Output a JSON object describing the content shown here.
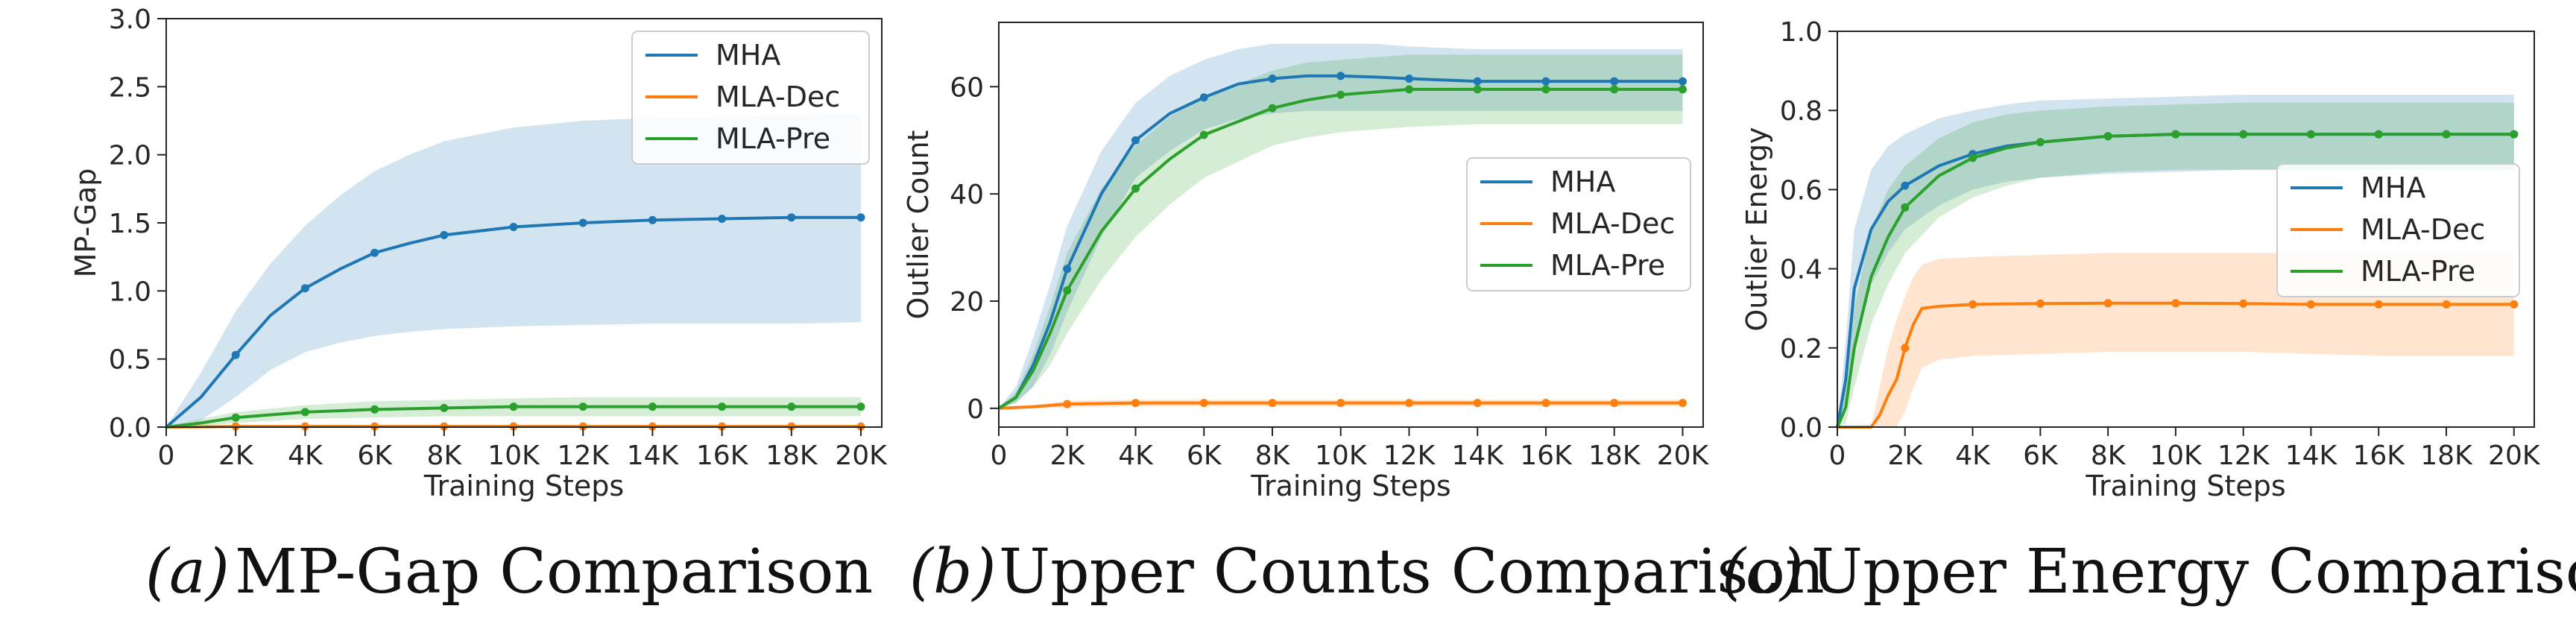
{
  "chart_data": [
    {
      "type": "line",
      "caption_label": "(a)",
      "caption_text": "MP-Gap Comparison",
      "xlabel": "Training Steps",
      "ylabel": "MP-Gap",
      "xlim": [
        0,
        20600
      ],
      "ylim": [
        0,
        3.0
      ],
      "xticks": [
        0,
        2000,
        4000,
        6000,
        8000,
        10000,
        12000,
        14000,
        16000,
        18000,
        20000
      ],
      "xticklabels": [
        "0",
        "2K",
        "4K",
        "6K",
        "8K",
        "10K",
        "12K",
        "14K",
        "16K",
        "18K",
        "20K"
      ],
      "yticks": [
        0,
        0.5,
        1.0,
        1.5,
        2.0,
        2.5,
        3.0
      ],
      "yticklabels": [
        "0.0",
        "0.5",
        "1.0",
        "1.5",
        "2.0",
        "2.5",
        "3.0"
      ],
      "grid": false,
      "legend_position": "top-right",
      "series": [
        {
          "name": "MHA",
          "color": "#1f77b4",
          "x": [
            0,
            1000,
            2000,
            3000,
            4000,
            5000,
            6000,
            7000,
            8000,
            10000,
            12000,
            14000,
            16000,
            18000,
            20000
          ],
          "y": [
            0,
            0.22,
            0.53,
            0.82,
            1.02,
            1.16,
            1.28,
            1.35,
            1.41,
            1.47,
            1.5,
            1.52,
            1.53,
            1.54,
            1.54
          ],
          "lower": [
            0,
            0.05,
            0.22,
            0.42,
            0.55,
            0.62,
            0.67,
            0.7,
            0.72,
            0.74,
            0.75,
            0.76,
            0.76,
            0.76,
            0.77
          ],
          "upper": [
            0,
            0.4,
            0.85,
            1.2,
            1.48,
            1.7,
            1.88,
            2.0,
            2.1,
            2.2,
            2.25,
            2.27,
            2.28,
            2.29,
            2.3
          ],
          "markers_x": [
            2000,
            4000,
            6000,
            8000,
            10000,
            12000,
            14000,
            16000,
            18000,
            20000
          ]
        },
        {
          "name": "MLA-Dec",
          "color": "#ff7f0e",
          "x": [
            0,
            2000,
            4000,
            6000,
            8000,
            10000,
            12000,
            14000,
            16000,
            18000,
            20000
          ],
          "y": [
            0,
            0.005,
            0.005,
            0.005,
            0.005,
            0.005,
            0.005,
            0.005,
            0.005,
            0.005,
            0.005
          ],
          "lower": [
            0,
            0,
            0,
            0,
            0,
            0,
            0,
            0,
            0,
            0,
            0
          ],
          "upper": [
            0,
            0.012,
            0.012,
            0.012,
            0.012,
            0.012,
            0.012,
            0.012,
            0.012,
            0.012,
            0.012
          ],
          "markers_x": [
            2000,
            4000,
            6000,
            8000,
            10000,
            12000,
            14000,
            16000,
            18000,
            20000
          ]
        },
        {
          "name": "MLA-Pre",
          "color": "#2ca02c",
          "x": [
            0,
            1000,
            2000,
            4000,
            6000,
            8000,
            10000,
            12000,
            14000,
            16000,
            18000,
            20000
          ],
          "y": [
            0,
            0.03,
            0.07,
            0.11,
            0.13,
            0.14,
            0.15,
            0.15,
            0.15,
            0.15,
            0.15,
            0.15
          ],
          "lower": [
            0,
            0.01,
            0.03,
            0.06,
            0.07,
            0.08,
            0.08,
            0.08,
            0.08,
            0.08,
            0.08,
            0.08
          ],
          "upper": [
            0,
            0.06,
            0.11,
            0.16,
            0.19,
            0.2,
            0.21,
            0.22,
            0.22,
            0.22,
            0.22,
            0.22
          ],
          "markers_x": [
            2000,
            4000,
            6000,
            8000,
            10000,
            12000,
            14000,
            16000,
            18000,
            20000
          ]
        }
      ]
    },
    {
      "type": "line",
      "caption_label": "(b)",
      "caption_text": "Upper Counts Comparison",
      "xlabel": "Training Steps",
      "ylabel": "Outlier Count",
      "xlim": [
        0,
        20600
      ],
      "ylim": [
        -3.5,
        72
      ],
      "xticks": [
        0,
        2000,
        4000,
        6000,
        8000,
        10000,
        12000,
        14000,
        16000,
        18000,
        20000
      ],
      "xticklabels": [
        "0",
        "2K",
        "4K",
        "6K",
        "8K",
        "10K",
        "12K",
        "14K",
        "16K",
        "18K",
        "20K"
      ],
      "yticks": [
        0,
        20,
        40,
        60
      ],
      "yticklabels": [
        "0",
        "20",
        "40",
        "60"
      ],
      "grid": false,
      "legend_position": "center-right",
      "series": [
        {
          "name": "MHA",
          "color": "#1f77b4",
          "x": [
            0,
            500,
            1000,
            1500,
            2000,
            3000,
            4000,
            5000,
            6000,
            7000,
            8000,
            9000,
            10000,
            11000,
            12000,
            14000,
            16000,
            18000,
            20000
          ],
          "y": [
            0,
            2,
            8,
            16,
            26,
            40,
            50,
            55,
            58,
            60.5,
            61.5,
            62,
            62,
            61.8,
            61.5,
            61,
            61,
            61,
            61
          ],
          "lower": [
            0,
            1,
            4,
            10,
            18,
            32,
            43,
            48,
            52,
            54,
            55,
            55.5,
            55.5,
            55.5,
            55.5,
            55.5,
            55.5,
            55.5,
            55.5
          ],
          "upper": [
            0,
            4,
            13,
            23,
            34,
            48,
            57,
            62,
            65,
            67,
            68,
            68,
            68,
            68,
            67.5,
            67,
            67,
            67,
            67
          ],
          "markers_x": [
            2000,
            4000,
            6000,
            8000,
            10000,
            12000,
            14000,
            16000,
            18000,
            20000
          ]
        },
        {
          "name": "MLA-Dec",
          "color": "#ff7f0e",
          "x": [
            0,
            1000,
            2000,
            4000,
            6000,
            8000,
            10000,
            12000,
            14000,
            16000,
            18000,
            20000
          ],
          "y": [
            0,
            0.3,
            0.8,
            1,
            1,
            1,
            1,
            1,
            1,
            1,
            1,
            1
          ],
          "lower": [
            0,
            0,
            0.2,
            0.4,
            0.4,
            0.4,
            0.4,
            0.4,
            0.4,
            0.4,
            0.4,
            0.4
          ],
          "upper": [
            0,
            0.6,
            1.4,
            1.6,
            1.6,
            1.6,
            1.6,
            1.6,
            1.6,
            1.6,
            1.6,
            1.6
          ],
          "markers_x": [
            2000,
            4000,
            6000,
            8000,
            10000,
            12000,
            14000,
            16000,
            18000,
            20000
          ]
        },
        {
          "name": "MLA-Pre",
          "color": "#2ca02c",
          "x": [
            0,
            500,
            1000,
            1500,
            2000,
            3000,
            4000,
            5000,
            6000,
            7000,
            8000,
            9000,
            10000,
            11000,
            12000,
            14000,
            16000,
            18000,
            20000
          ],
          "y": [
            0,
            2,
            7,
            14,
            22,
            33,
            41,
            46.5,
            51,
            53.5,
            56,
            57.5,
            58.5,
            59,
            59.5,
            59.5,
            59.5,
            59.5,
            59.5
          ],
          "lower": [
            0,
            1,
            4,
            8,
            14,
            24,
            32,
            38,
            43,
            46,
            49,
            50.5,
            51.5,
            52,
            52.5,
            53,
            53,
            53,
            53
          ],
          "upper": [
            0,
            3,
            10,
            19,
            29,
            41,
            49,
            54.5,
            58,
            60.5,
            63,
            64.5,
            65,
            65.5,
            66,
            66,
            66,
            66,
            66
          ],
          "markers_x": [
            2000,
            4000,
            6000,
            8000,
            10000,
            12000,
            14000,
            16000,
            18000,
            20000
          ]
        }
      ]
    },
    {
      "type": "line",
      "caption_label": "(c)",
      "caption_text": "Upper Energy Comparison",
      "xlabel": "Training Steps",
      "ylabel": "Outlier Energy",
      "xlim": [
        0,
        20600
      ],
      "ylim": [
        0,
        1.0
      ],
      "xticks": [
        0,
        2000,
        4000,
        6000,
        8000,
        10000,
        12000,
        14000,
        16000,
        18000,
        20000
      ],
      "xticklabels": [
        "0",
        "2K",
        "4K",
        "6K",
        "8K",
        "10K",
        "12K",
        "14K",
        "16K",
        "18K",
        "20K"
      ],
      "yticks": [
        0,
        0.2,
        0.4,
        0.6,
        0.8,
        1.0
      ],
      "yticklabels": [
        "0.0",
        "0.2",
        "0.4",
        "0.6",
        "0.8",
        "1.0"
      ],
      "grid": false,
      "legend_position": "center-right",
      "series": [
        {
          "name": "MHA",
          "color": "#1f77b4",
          "x": [
            0,
            250,
            500,
            1000,
            1500,
            2000,
            3000,
            4000,
            5000,
            6000,
            8000,
            10000,
            12000,
            14000,
            16000,
            18000,
            20000
          ],
          "y": [
            0,
            0.12,
            0.35,
            0.5,
            0.57,
            0.61,
            0.66,
            0.69,
            0.71,
            0.72,
            0.735,
            0.74,
            0.74,
            0.74,
            0.74,
            0.74,
            0.74
          ],
          "lower": [
            0,
            0.04,
            0.2,
            0.36,
            0.44,
            0.5,
            0.56,
            0.6,
            0.62,
            0.63,
            0.64,
            0.645,
            0.65,
            0.65,
            0.65,
            0.65,
            0.65
          ],
          "upper": [
            0,
            0.22,
            0.5,
            0.65,
            0.71,
            0.74,
            0.78,
            0.8,
            0.815,
            0.825,
            0.83,
            0.835,
            0.84,
            0.84,
            0.84,
            0.84,
            0.84
          ],
          "markers_x": [
            2000,
            4000,
            6000,
            8000,
            10000,
            12000,
            14000,
            16000,
            18000,
            20000
          ]
        },
        {
          "name": "MLA-Dec",
          "color": "#ff7f0e",
          "x": [
            0,
            1000,
            1250,
            1500,
            1750,
            2000,
            2250,
            2500,
            3000,
            4000,
            6000,
            8000,
            10000,
            12000,
            14000,
            16000,
            18000,
            20000
          ],
          "y": [
            0,
            0,
            0.03,
            0.08,
            0.12,
            0.2,
            0.26,
            0.3,
            0.305,
            0.31,
            0.312,
            0.313,
            0.313,
            0.312,
            0.31,
            0.31,
            0.31,
            0.31
          ],
          "lower": [
            0,
            0,
            0,
            0,
            0,
            0.04,
            0.1,
            0.15,
            0.17,
            0.18,
            0.185,
            0.19,
            0.19,
            0.19,
            0.185,
            0.18,
            0.18,
            0.18
          ],
          "upper": [
            0,
            0,
            0.1,
            0.2,
            0.27,
            0.33,
            0.38,
            0.41,
            0.425,
            0.43,
            0.435,
            0.44,
            0.44,
            0.44,
            0.44,
            0.44,
            0.44,
            0.44
          ],
          "markers_x": [
            2000,
            4000,
            6000,
            8000,
            10000,
            12000,
            14000,
            16000,
            18000,
            20000
          ]
        },
        {
          "name": "MLA-Pre",
          "color": "#2ca02c",
          "x": [
            0,
            250,
            500,
            1000,
            1500,
            2000,
            3000,
            4000,
            5000,
            6000,
            8000,
            10000,
            12000,
            14000,
            16000,
            18000,
            20000
          ],
          "y": [
            0,
            0.05,
            0.2,
            0.38,
            0.48,
            0.555,
            0.635,
            0.68,
            0.705,
            0.72,
            0.735,
            0.74,
            0.74,
            0.74,
            0.74,
            0.74,
            0.74
          ],
          "lower": [
            0,
            0.01,
            0.1,
            0.26,
            0.36,
            0.44,
            0.53,
            0.58,
            0.61,
            0.63,
            0.645,
            0.65,
            0.65,
            0.65,
            0.65,
            0.65,
            0.65
          ],
          "upper": [
            0,
            0.1,
            0.3,
            0.5,
            0.6,
            0.66,
            0.73,
            0.77,
            0.79,
            0.8,
            0.81,
            0.815,
            0.82,
            0.82,
            0.82,
            0.82,
            0.82
          ],
          "markers_x": [
            2000,
            4000,
            6000,
            8000,
            10000,
            12000,
            14000,
            16000,
            18000,
            20000
          ]
        }
      ]
    }
  ]
}
